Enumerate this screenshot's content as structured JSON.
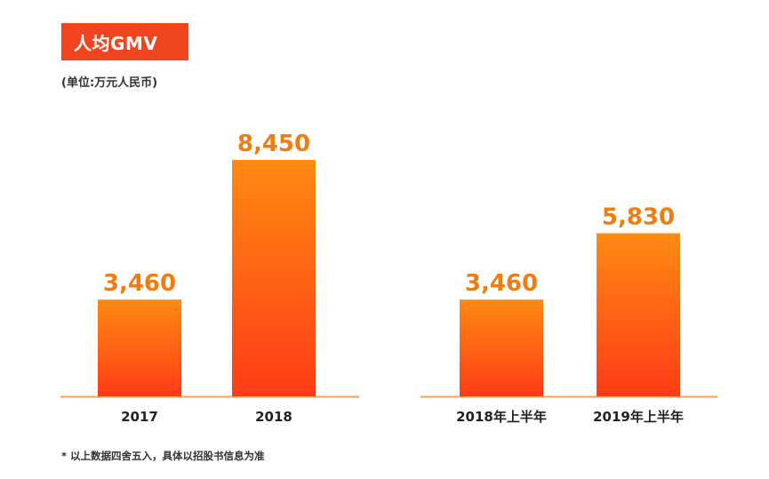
{
  "header": {
    "title": "人均GMV",
    "unit": "(单位:万元人民币)"
  },
  "footnote": "* 以上数据四舍五入，具体以招股书信息为准",
  "colors": {
    "badge": "#f0451f",
    "bar_top": "#ff8a12",
    "bar_bottom": "#ff3b17",
    "value_label": "#f07d12",
    "axis": "#f5a25a"
  },
  "chart_data": [
    {
      "type": "bar",
      "title": "",
      "categories": [
        "2017",
        "2018"
      ],
      "values": [
        3460,
        8450
      ],
      "value_labels": [
        "3,460",
        "8,450"
      ],
      "xlabel": "",
      "ylabel": "",
      "ylim": [
        0,
        9000
      ],
      "grid": false
    },
    {
      "type": "bar",
      "title": "",
      "categories": [
        "2018年上半年",
        "2019年上半年"
      ],
      "values": [
        3460,
        5830
      ],
      "value_labels": [
        "3,460",
        "5,830"
      ],
      "xlabel": "",
      "ylabel": "",
      "ylim": [
        0,
        9000
      ],
      "grid": false
    }
  ]
}
